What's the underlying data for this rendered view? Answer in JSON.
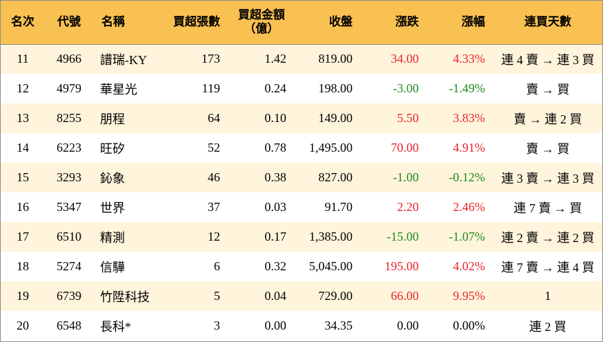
{
  "headers": {
    "rank": "名次",
    "code": "代號",
    "name": "名稱",
    "net_buy_lots": "買超張數",
    "net_buy_amount_line1": "買超金額",
    "net_buy_amount_line2": "（億）",
    "close": "收盤",
    "change": "漲跌",
    "change_pct": "漲幅",
    "consecutive_days": "連買天數"
  },
  "colors": {
    "up": "#e8232a",
    "down": "#1e8a1e",
    "header_bg": "#f9c052",
    "stripe_bg": "#fff4dc"
  },
  "rows": [
    {
      "rank": "11",
      "code": "4966",
      "name": "譜瑞-KY",
      "net_buy_lots": "173",
      "net_buy_amount": "1.42",
      "close": "819.00",
      "change": "34.00",
      "change_pct": "4.33%",
      "direction": "up",
      "consecutive_days": "連 4 賣 → 連 3 買"
    },
    {
      "rank": "12",
      "code": "4979",
      "name": "華星光",
      "net_buy_lots": "119",
      "net_buy_amount": "0.24",
      "close": "198.00",
      "change": "-3.00",
      "change_pct": "-1.49%",
      "direction": "down",
      "consecutive_days": "賣 → 買"
    },
    {
      "rank": "13",
      "code": "8255",
      "name": "朋程",
      "net_buy_lots": "64",
      "net_buy_amount": "0.10",
      "close": "149.00",
      "change": "5.50",
      "change_pct": "3.83%",
      "direction": "up",
      "consecutive_days": "賣 → 連 2 買"
    },
    {
      "rank": "14",
      "code": "6223",
      "name": "旺矽",
      "net_buy_lots": "52",
      "net_buy_amount": "0.78",
      "close": "1,495.00",
      "change": "70.00",
      "change_pct": "4.91%",
      "direction": "up",
      "consecutive_days": "賣 → 買"
    },
    {
      "rank": "15",
      "code": "3293",
      "name": "鈊象",
      "net_buy_lots": "46",
      "net_buy_amount": "0.38",
      "close": "827.00",
      "change": "-1.00",
      "change_pct": "-0.12%",
      "direction": "down",
      "consecutive_days": "連 3 賣 → 連 3 買"
    },
    {
      "rank": "16",
      "code": "5347",
      "name": "世界",
      "net_buy_lots": "37",
      "net_buy_amount": "0.03",
      "close": "91.70",
      "change": "2.20",
      "change_pct": "2.46%",
      "direction": "up",
      "consecutive_days": "連 7 賣 → 買"
    },
    {
      "rank": "17",
      "code": "6510",
      "name": "精測",
      "net_buy_lots": "12",
      "net_buy_amount": "0.17",
      "close": "1,385.00",
      "change": "-15.00",
      "change_pct": "-1.07%",
      "direction": "down",
      "consecutive_days": "連 2 賣 → 連 2 買"
    },
    {
      "rank": "18",
      "code": "5274",
      "name": "信驊",
      "net_buy_lots": "6",
      "net_buy_amount": "0.32",
      "close": "5,045.00",
      "change": "195.00",
      "change_pct": "4.02%",
      "direction": "up",
      "consecutive_days": "連 7 賣 → 連 4 買"
    },
    {
      "rank": "19",
      "code": "6739",
      "name": "竹陞科技",
      "net_buy_lots": "5",
      "net_buy_amount": "0.04",
      "close": "729.00",
      "change": "66.00",
      "change_pct": "9.95%",
      "direction": "up",
      "consecutive_days": "1"
    },
    {
      "rank": "20",
      "code": "6548",
      "name": "長科*",
      "net_buy_lots": "3",
      "net_buy_amount": "0.00",
      "close": "34.35",
      "change": "0.00",
      "change_pct": "0.00%",
      "direction": "flat",
      "consecutive_days": "連 2 買"
    }
  ]
}
